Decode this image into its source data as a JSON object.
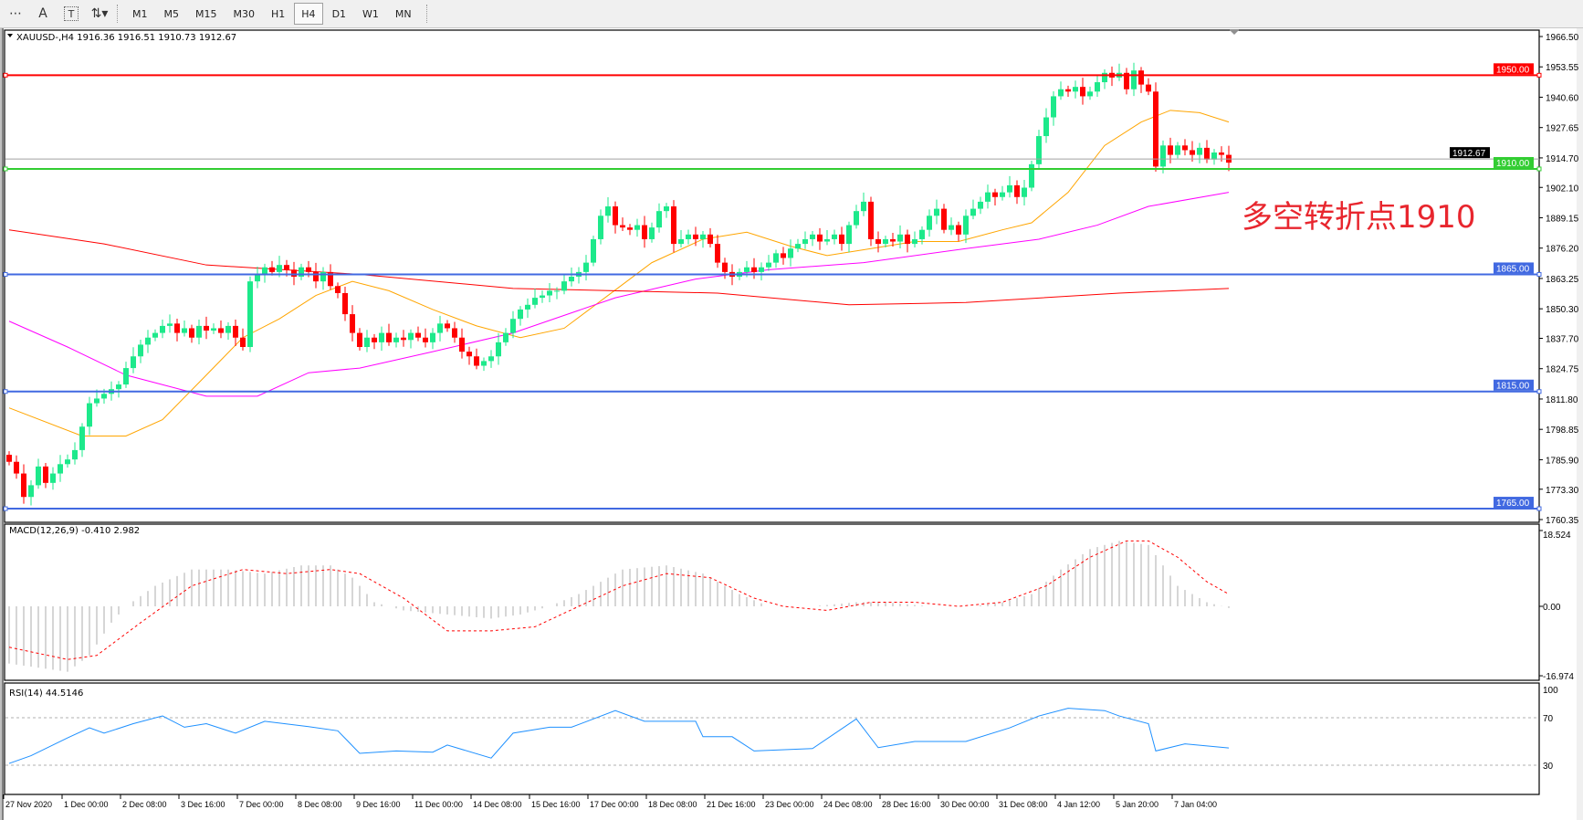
{
  "toolbar": {
    "icons": [
      "period-separators-icon",
      "text-a-icon",
      "text-label-icon",
      "arrows-dropdown-icon"
    ],
    "icon_glyphs": [
      "⋯",
      "A",
      "T",
      "⇅▾"
    ],
    "timeframes": [
      "M1",
      "M5",
      "M15",
      "M30",
      "H1",
      "H4",
      "D1",
      "W1",
      "MN"
    ],
    "active_timeframe": "H4"
  },
  "chart_data": [
    {
      "type": "candlestick",
      "title": "XAUUSD-,H4  1916.36 1916.51 1910.73 1912.67",
      "symbol": "XAUUSD-",
      "timeframe": "H4",
      "ohlc_last": {
        "open": 1916.36,
        "high": 1916.51,
        "low": 1910.73,
        "close": 1912.67
      },
      "ylim": [
        1760.35,
        1966.5
      ],
      "y_ticks": [
        "1966.50",
        "1953.55",
        "1940.60",
        "1927.65",
        "1914.70",
        "1902.10",
        "1889.15",
        "1876.20",
        "1863.25",
        "1850.30",
        "1837.70",
        "1824.75",
        "1811.80",
        "1798.85",
        "1785.90",
        "1773.30",
        "1760.35"
      ],
      "x_ticks": [
        {
          "label": "27 Nov 2020",
          "bar": 0
        },
        {
          "label": "1 Dec 00:00",
          "bar": 8
        },
        {
          "label": "2 Dec 08:00",
          "bar": 16
        },
        {
          "label": "3 Dec 16:00",
          "bar": 24
        },
        {
          "label": "7 Dec 00:00",
          "bar": 32
        },
        {
          "label": "8 Dec 08:00",
          "bar": 40
        },
        {
          "label": "9 Dec 16:00",
          "bar": 48
        },
        {
          "label": "11 Dec 00:00",
          "bar": 56
        },
        {
          "label": "14 Dec 08:00",
          "bar": 64
        },
        {
          "label": "15 Dec 16:00",
          "bar": 72
        },
        {
          "label": "17 Dec 00:00",
          "bar": 80
        },
        {
          "label": "18 Dec 08:00",
          "bar": 88
        },
        {
          "label": "21 Dec 16:00",
          "bar": 96
        },
        {
          "label": "23 Dec 00:00",
          "bar": 104
        },
        {
          "label": "24 Dec 08:00",
          "bar": 112
        },
        {
          "label": "28 Dec 16:00",
          "bar": 120
        },
        {
          "label": "30 Dec 00:00",
          "bar": 128
        },
        {
          "label": "31 Dec 08:00",
          "bar": 136
        },
        {
          "label": "4 Jan 12:00",
          "bar": 144
        },
        {
          "label": "5 Jan 20:00",
          "bar": 152
        },
        {
          "label": "7 Jan 04:00",
          "bar": 160
        }
      ],
      "close": [
        1785,
        1780,
        1770,
        1775,
        1783,
        1776,
        1780,
        1784,
        1786,
        1790,
        1800,
        1810,
        1812,
        1814,
        1816,
        1818,
        1825,
        1830,
        1835,
        1838,
        1840,
        1843,
        1844,
        1840,
        1842,
        1838,
        1843,
        1841,
        1842,
        1840,
        1843,
        1838,
        1834,
        1862,
        1865,
        1868,
        1866,
        1869,
        1867,
        1864,
        1868,
        1866,
        1862,
        1866,
        1860,
        1857,
        1848,
        1840,
        1834,
        1838,
        1836,
        1840,
        1836,
        1838,
        1837,
        1840,
        1838,
        1836,
        1840,
        1844,
        1842,
        1838,
        1832,
        1830,
        1826,
        1828,
        1830,
        1836,
        1840,
        1846,
        1850,
        1852,
        1855,
        1856,
        1858,
        1858,
        1862,
        1864,
        1866,
        1870,
        1880,
        1890,
        1894,
        1886,
        1885,
        1884,
        1886,
        1880,
        1885,
        1892,
        1894,
        1878,
        1880,
        1882,
        1880,
        1882,
        1878,
        1870,
        1866,
        1864,
        1866,
        1868,
        1866,
        1868,
        1870,
        1874,
        1872,
        1876,
        1878,
        1880,
        1882,
        1879,
        1880,
        1882,
        1878,
        1886,
        1892,
        1896,
        1880,
        1878,
        1880,
        1879,
        1882,
        1878,
        1880,
        1884,
        1890,
        1893,
        1884,
        1886,
        1882,
        1890,
        1893,
        1896,
        1900,
        1898,
        1900,
        1903,
        1898,
        1902,
        1912,
        1924,
        1932,
        1941,
        1944,
        1943,
        1945,
        1941,
        1943,
        1947,
        1951,
        1949,
        1951,
        1944,
        1952,
        1946,
        1943,
        1911,
        1920,
        1916,
        1920,
        1918,
        1916,
        1919,
        1914,
        1917,
        1916,
        1912.67
      ],
      "moving_averages": [
        {
          "color": "#ffa500",
          "points": [
            [
              0,
              1808
            ],
            [
              10,
              1796
            ],
            [
              16,
              1796
            ],
            [
              21,
              1803
            ],
            [
              27,
              1822
            ],
            [
              32,
              1838
            ],
            [
              37,
              1846
            ],
            [
              42,
              1856
            ],
            [
              47,
              1862
            ],
            [
              52,
              1858
            ],
            [
              58,
              1850
            ],
            [
              64,
              1843
            ],
            [
              70,
              1838
            ],
            [
              76,
              1842
            ],
            [
              82,
              1856
            ],
            [
              88,
              1870
            ],
            [
              95,
              1880
            ],
            [
              101,
              1883
            ],
            [
              107,
              1877
            ],
            [
              112,
              1873
            ],
            [
              118,
              1876
            ],
            [
              124,
              1879
            ],
            [
              130,
              1879
            ],
            [
              136,
              1884
            ],
            [
              140,
              1887
            ],
            [
              145,
              1900
            ],
            [
              150,
              1920
            ],
            [
              155,
              1930
            ],
            [
              159,
              1935
            ],
            [
              163,
              1934
            ],
            [
              167,
              1930
            ]
          ]
        },
        {
          "color": "#ff00ff",
          "points": [
            [
              0,
              1845
            ],
            [
              8,
              1834
            ],
            [
              16,
              1822
            ],
            [
              27,
              1813
            ],
            [
              34,
              1813
            ],
            [
              41,
              1823
            ],
            [
              48,
              1825
            ],
            [
              58,
              1832
            ],
            [
              69,
              1840
            ],
            [
              83,
              1855
            ],
            [
              94,
              1863
            ],
            [
              104,
              1867
            ],
            [
              117,
              1870
            ],
            [
              131,
              1876
            ],
            [
              141,
              1880
            ],
            [
              149,
              1886
            ],
            [
              156,
              1894
            ],
            [
              167,
              1900
            ]
          ]
        },
        {
          "color": "#ff0000",
          "points": [
            [
              0,
              1884
            ],
            [
              13,
              1878
            ],
            [
              27,
              1869
            ],
            [
              48,
              1865
            ],
            [
              69,
              1859
            ],
            [
              97,
              1857
            ],
            [
              115,
              1852
            ],
            [
              131,
              1853
            ],
            [
              152,
              1857
            ],
            [
              167,
              1859
            ]
          ]
        }
      ],
      "horizontal_lines": [
        {
          "price": "1950.00",
          "color": "#ff0000"
        },
        {
          "price": "1910.00",
          "color": "#32cd32"
        },
        {
          "price": "1865.00",
          "color": "#4169e1"
        },
        {
          "price": "1815.00",
          "color": "#4169e1"
        },
        {
          "price": "1765.00",
          "color": "#4169e1"
        }
      ],
      "current_price": "1912.67",
      "annotation": "多空转折点1910",
      "colors": {
        "bull": "#1de98b",
        "bear": "#ff0000",
        "annotation": "#e8262e"
      }
    },
    {
      "type": "bar+line",
      "title": "MACD(12,26,9) -0.410 2.982",
      "ylim": [
        -16.974,
        18.524
      ],
      "y_ticks": [
        "18.524",
        "0.00",
        "-16.974"
      ],
      "histogram": [
        [
          0,
          -14
        ],
        [
          8,
          -16
        ],
        [
          11,
          -12
        ],
        [
          14,
          -4
        ],
        [
          16,
          0
        ],
        [
          20,
          5
        ],
        [
          25,
          9
        ],
        [
          30,
          9
        ],
        [
          35,
          8
        ],
        [
          40,
          10
        ],
        [
          44,
          10
        ],
        [
          47,
          7
        ],
        [
          50,
          1
        ],
        [
          54,
          -1
        ],
        [
          60,
          -2
        ],
        [
          66,
          -3
        ],
        [
          70,
          -2
        ],
        [
          74,
          0
        ],
        [
          78,
          3
        ],
        [
          84,
          9
        ],
        [
          90,
          10
        ],
        [
          95,
          8
        ],
        [
          100,
          3
        ],
        [
          104,
          0
        ],
        [
          110,
          0
        ],
        [
          116,
          1
        ],
        [
          120,
          1
        ],
        [
          126,
          0
        ],
        [
          132,
          0
        ],
        [
          136,
          1
        ],
        [
          140,
          3
        ],
        [
          144,
          9
        ],
        [
          148,
          14
        ],
        [
          152,
          16
        ],
        [
          156,
          15
        ],
        [
          160,
          5
        ],
        [
          164,
          1
        ],
        [
          167,
          -0.41
        ]
      ],
      "signal": [
        [
          0,
          -10
        ],
        [
          8,
          -13
        ],
        [
          12,
          -12
        ],
        [
          18,
          -4
        ],
        [
          25,
          5
        ],
        [
          32,
          9
        ],
        [
          38,
          8
        ],
        [
          44,
          9
        ],
        [
          48,
          8
        ],
        [
          54,
          2
        ],
        [
          60,
          -6
        ],
        [
          66,
          -6
        ],
        [
          72,
          -5
        ],
        [
          78,
          0
        ],
        [
          84,
          5
        ],
        [
          90,
          8
        ],
        [
          96,
          7
        ],
        [
          102,
          2
        ],
        [
          106,
          0
        ],
        [
          112,
          -1
        ],
        [
          118,
          1
        ],
        [
          124,
          1
        ],
        [
          130,
          0
        ],
        [
          136,
          1
        ],
        [
          142,
          5
        ],
        [
          148,
          12
        ],
        [
          153,
          16
        ],
        [
          156,
          16
        ],
        [
          160,
          12
        ],
        [
          164,
          6
        ],
        [
          167,
          2.982
        ]
      ],
      "colors": {
        "histogram": "#c0c0c0",
        "signal": "#ff0000"
      }
    },
    {
      "type": "line",
      "title": "RSI(14) 44.5146",
      "ylim": [
        0,
        100
      ],
      "y_ticks": [
        "100",
        "70",
        "30"
      ],
      "levels": [
        70,
        30
      ],
      "values": [
        [
          0,
          31.5
        ],
        [
          3,
          38
        ],
        [
          8,
          53
        ],
        [
          11,
          61.5
        ],
        [
          13,
          57
        ],
        [
          17,
          65
        ],
        [
          21,
          71.5
        ],
        [
          24,
          62
        ],
        [
          27,
          65
        ],
        [
          31,
          57
        ],
        [
          35,
          67
        ],
        [
          41,
          62.5
        ],
        [
          45,
          59
        ],
        [
          48,
          40
        ],
        [
          53,
          42
        ],
        [
          58,
          41
        ],
        [
          60,
          47
        ],
        [
          66,
          36
        ],
        [
          69,
          57
        ],
        [
          74,
          62
        ],
        [
          77,
          62
        ],
        [
          83,
          76
        ],
        [
          87,
          67
        ],
        [
          94,
          67
        ],
        [
          95,
          54
        ],
        [
          99,
          54
        ],
        [
          102,
          42
        ],
        [
          110,
          44
        ],
        [
          116,
          69
        ],
        [
          119,
          44.8
        ],
        [
          124,
          50
        ],
        [
          131,
          50
        ],
        [
          137,
          61.5
        ],
        [
          141,
          71.5
        ],
        [
          145,
          78
        ],
        [
          150,
          76
        ],
        [
          152,
          71.5
        ],
        [
          156,
          65
        ],
        [
          157,
          42
        ],
        [
          161,
          48
        ],
        [
          167,
          44.5146
        ]
      ],
      "color": "#1e90ff"
    }
  ]
}
